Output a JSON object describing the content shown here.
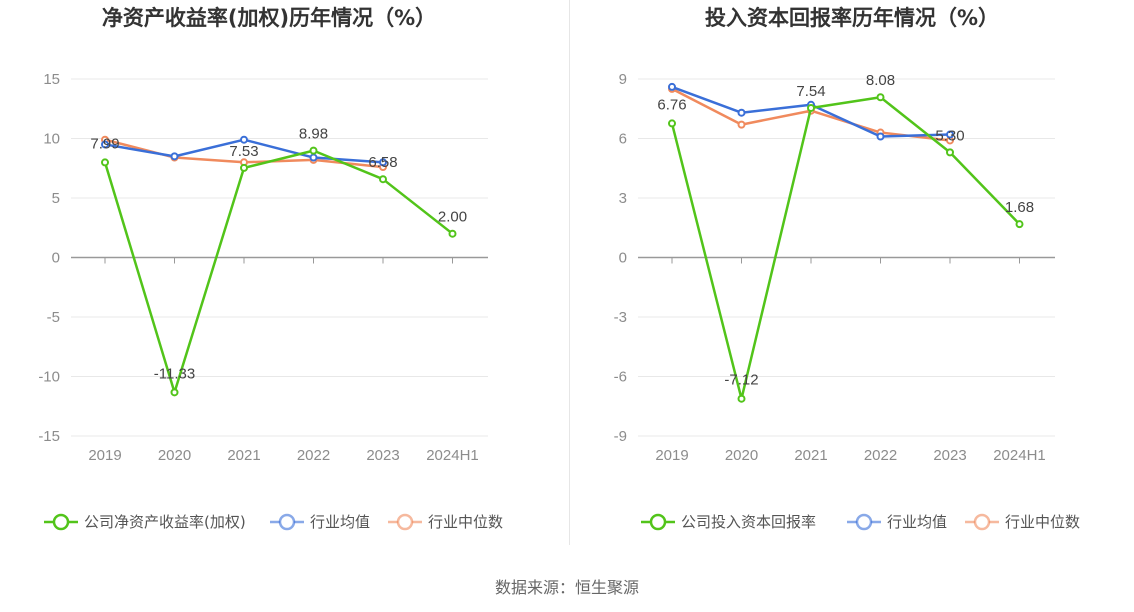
{
  "source_label": "数据来源：恒生聚源",
  "chart_data": [
    {
      "type": "line",
      "title": "净资产收益率(加权)历年情况（%）",
      "categories": [
        "2019",
        "2020",
        "2021",
        "2022",
        "2023",
        "2024H1"
      ],
      "ylim": [
        -15,
        15
      ],
      "yticks": [
        15,
        10,
        5,
        0,
        -5,
        -10,
        -15
      ],
      "grid": true,
      "legend_position": "bottom",
      "series": [
        {
          "name": "公司净资产收益率(加权)",
          "color": "#52c41a",
          "values": [
            7.99,
            -11.33,
            7.53,
            8.98,
            6.58,
            2.0
          ],
          "labels": [
            "7.99",
            "-11.33",
            "7.53",
            "8.98",
            "6.58",
            "2.00"
          ]
        },
        {
          "name": "行业均值",
          "color": "#3a6fd8",
          "values": [
            9.5,
            8.5,
            9.9,
            8.4,
            8.0,
            null
          ]
        },
        {
          "name": "行业中位数",
          "color": "#f08a5d",
          "values": [
            9.9,
            8.4,
            8.0,
            8.2,
            7.6,
            null
          ]
        }
      ]
    },
    {
      "type": "line",
      "title": "投入资本回报率历年情况（%）",
      "categories": [
        "2019",
        "2020",
        "2021",
        "2022",
        "2023",
        "2024H1"
      ],
      "ylim": [
        -9,
        9
      ],
      "yticks": [
        9,
        6,
        3,
        0,
        -3,
        -6,
        -9
      ],
      "grid": true,
      "legend_position": "bottom",
      "series": [
        {
          "name": "公司投入资本回报率",
          "color": "#52c41a",
          "values": [
            6.76,
            -7.12,
            7.54,
            8.08,
            5.3,
            1.68
          ],
          "labels": [
            "6.76",
            "-7.12",
            "7.54",
            "8.08",
            "5.30",
            "1.68"
          ]
        },
        {
          "name": "行业均值",
          "color": "#3a6fd8",
          "values": [
            8.6,
            7.3,
            7.7,
            6.1,
            6.2,
            null
          ]
        },
        {
          "name": "行业中位数",
          "color": "#f08a5d",
          "values": [
            8.5,
            6.7,
            7.4,
            6.3,
            5.9,
            null
          ]
        }
      ]
    }
  ]
}
